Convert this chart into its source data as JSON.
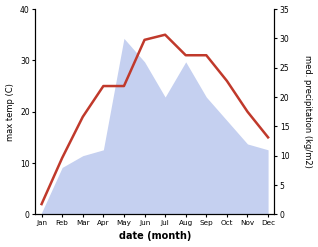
{
  "months": [
    "Jan",
    "Feb",
    "Mar",
    "Apr",
    "May",
    "Jun",
    "Jul",
    "Aug",
    "Sep",
    "Oct",
    "Nov",
    "Dec"
  ],
  "temperature": [
    2,
    11,
    19,
    25,
    25,
    34,
    35,
    31,
    31,
    26,
    20,
    15
  ],
  "precipitation": [
    0.3,
    8,
    10,
    11,
    30,
    26,
    20,
    26,
    20,
    16,
    12,
    11
  ],
  "temp_color": "#c0392b",
  "precip_fill_color": "#c5d0f0",
  "temp_ylim": [
    0,
    40
  ],
  "precip_ylim": [
    0,
    35
  ],
  "temp_yticks": [
    0,
    10,
    20,
    30,
    40
  ],
  "precip_yticks": [
    0,
    5,
    10,
    15,
    20,
    25,
    30,
    35
  ],
  "xlabel": "date (month)",
  "ylabel_left": "max temp (C)",
  "ylabel_right": "med. precipitation (kg/m2)"
}
